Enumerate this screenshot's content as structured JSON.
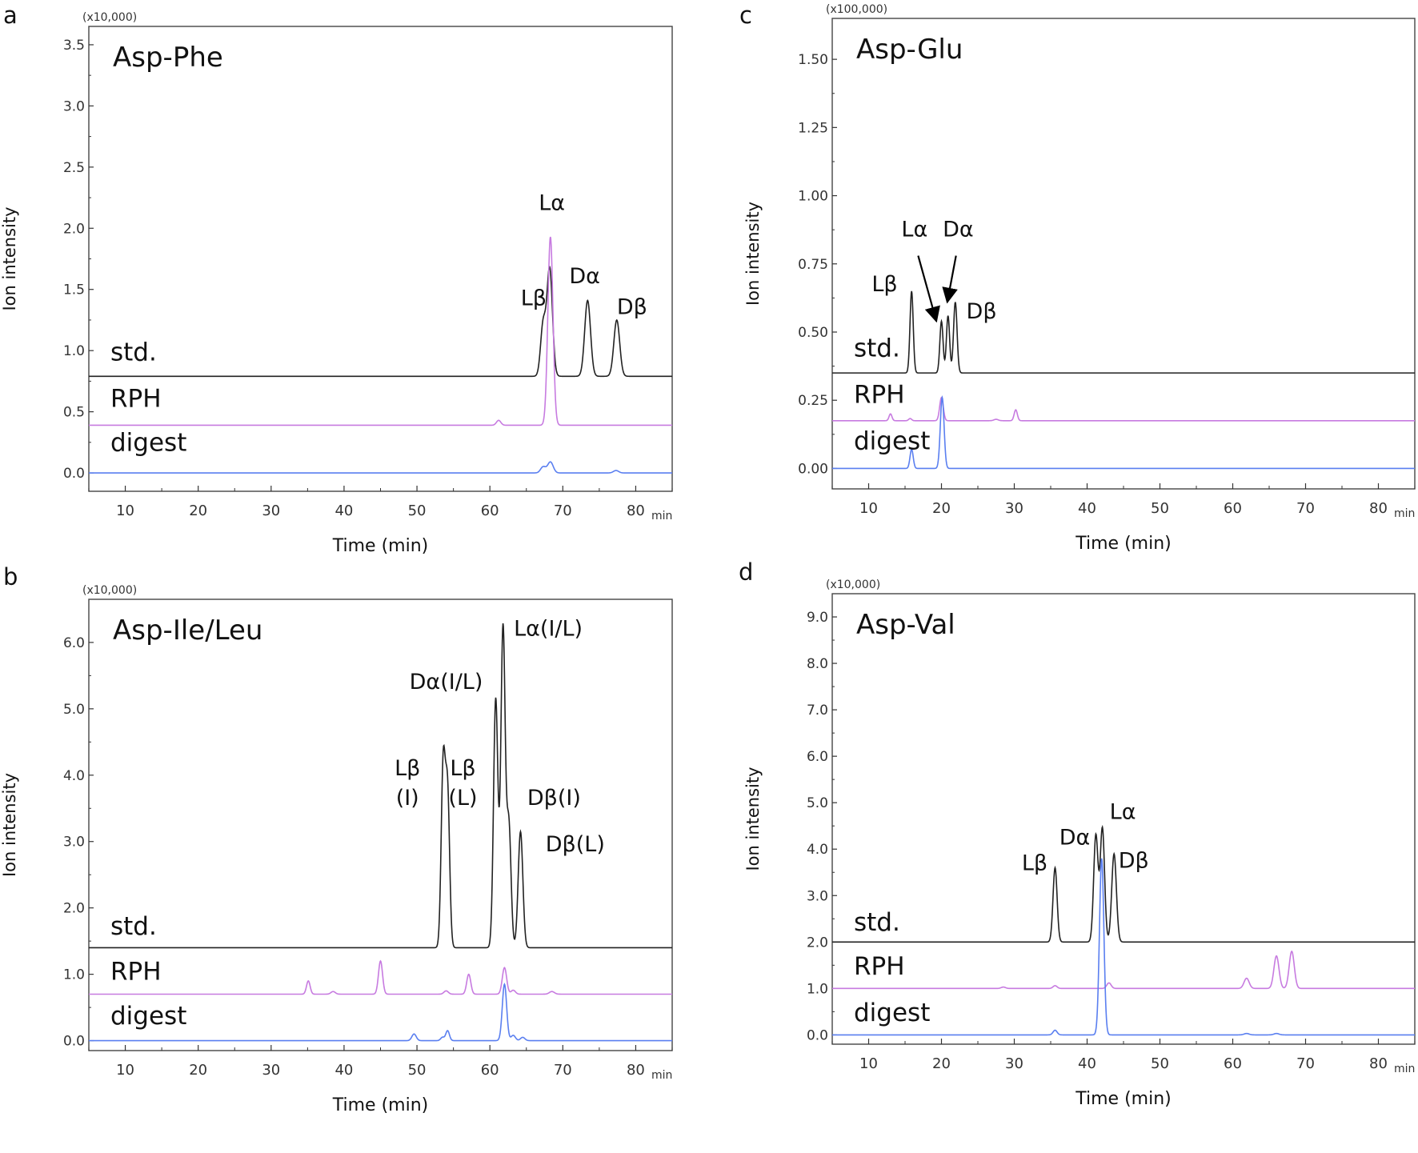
{
  "colors": {
    "std": "#222222",
    "rph": "#c77be0",
    "digest": "#5a7ff0",
    "axis": "#333333",
    "frame": "#444444"
  },
  "chart_data": [
    {
      "panel": "a",
      "type": "line",
      "title": "Asp-Phe",
      "xlabel": "Time (min)",
      "ylabel": "Ion intensity",
      "y_multiplier": "(x10,000)",
      "x_unit": "min",
      "xlim": [
        5,
        85
      ],
      "ylim": [
        -0.15,
        3.65
      ],
      "x_ticks": [
        10,
        20,
        30,
        40,
        50,
        60,
        70,
        80
      ],
      "y_ticks": [
        0.0,
        0.5,
        1.0,
        1.5,
        2.0,
        2.5,
        3.0,
        3.5
      ],
      "y_tick_labels": [
        "0.0",
        "0.5",
        "1.0",
        "1.5",
        "2.0",
        "2.5",
        "3.0",
        "3.5"
      ],
      "series": [
        {
          "name": "std.",
          "baseline": 0.79,
          "label_y": 0.92,
          "color_key": "std",
          "peaks": [
            [
              67.3,
              0.42,
              0.35
            ],
            [
              68.2,
              0.88,
              0.38
            ],
            [
              73.4,
              0.62,
              0.4
            ],
            [
              77.4,
              0.46,
              0.4
            ]
          ]
        },
        {
          "name": "RPH",
          "baseline": 0.39,
          "label_y": 0.54,
          "color_key": "rph",
          "peaks": [
            [
              61.2,
              0.04,
              0.3
            ],
            [
              68.3,
              1.54,
              0.35
            ]
          ]
        },
        {
          "name": "digest",
          "baseline": 0.0,
          "label_y": 0.18,
          "color_key": "digest",
          "peaks": [
            [
              67.3,
              0.05,
              0.35
            ],
            [
              68.3,
              0.09,
              0.38
            ],
            [
              77.3,
              0.02,
              0.35
            ]
          ]
        }
      ],
      "annotations": [
        {
          "text": "Lβ",
          "x": 66.0,
          "y": 1.37
        },
        {
          "text": "Lα",
          "x": 68.5,
          "y": 2.15
        },
        {
          "text": "Dα",
          "x": 73.0,
          "y": 1.55
        },
        {
          "text": "Dβ",
          "x": 79.5,
          "y": 1.3
        }
      ],
      "arrows": []
    },
    {
      "panel": "b",
      "type": "line",
      "title": "Asp-Ile/Leu",
      "xlabel": "Time (min)",
      "ylabel": "Ion intensity",
      "y_multiplier": "(x10,000)",
      "x_unit": "min",
      "xlim": [
        5,
        85
      ],
      "ylim": [
        -0.15,
        6.65
      ],
      "x_ticks": [
        10,
        20,
        30,
        40,
        50,
        60,
        70,
        80
      ],
      "y_ticks": [
        0.0,
        1.0,
        2.0,
        3.0,
        4.0,
        5.0,
        6.0
      ],
      "y_tick_labels": [
        "0.0",
        "1.0",
        "2.0",
        "3.0",
        "4.0",
        "5.0",
        "6.0"
      ],
      "series": [
        {
          "name": "std.",
          "baseline": 1.4,
          "label_y": 1.6,
          "color_key": "std",
          "peaks": [
            [
              53.6,
              2.75,
              0.28
            ],
            [
              54.2,
              2.3,
              0.28
            ],
            [
              60.8,
              3.75,
              0.3
            ],
            [
              61.8,
              4.82,
              0.3
            ],
            [
              62.6,
              1.85,
              0.3
            ],
            [
              64.2,
              1.75,
              0.32
            ]
          ]
        },
        {
          "name": "RPH",
          "baseline": 0.7,
          "label_y": 0.92,
          "color_key": "rph",
          "peaks": [
            [
              35.1,
              0.2,
              0.25
            ],
            [
              38.5,
              0.04,
              0.3
            ],
            [
              45.0,
              0.5,
              0.28
            ],
            [
              54.0,
              0.05,
              0.3
            ],
            [
              57.1,
              0.3,
              0.28
            ],
            [
              62.0,
              0.4,
              0.3
            ],
            [
              63.2,
              0.06,
              0.3
            ],
            [
              68.5,
              0.04,
              0.35
            ]
          ]
        },
        {
          "name": "digest",
          "baseline": 0.0,
          "label_y": 0.25,
          "color_key": "digest",
          "peaks": [
            [
              49.6,
              0.1,
              0.3
            ],
            [
              53.5,
              0.05,
              0.25
            ],
            [
              54.2,
              0.15,
              0.25
            ],
            [
              62.0,
              0.85,
              0.3
            ],
            [
              63.2,
              0.08,
              0.3
            ],
            [
              64.5,
              0.05,
              0.3
            ]
          ]
        }
      ],
      "annotations": [
        {
          "text": "Dα(I/L)",
          "x": 54.0,
          "y": 5.3
        },
        {
          "text": "Lα(I/L)",
          "x": 68.0,
          "y": 6.1
        },
        {
          "text": "Lβ",
          "x": 48.7,
          "y": 4.0
        },
        {
          "text": "(I)",
          "x": 48.7,
          "y": 3.55
        },
        {
          "text": "Lβ",
          "x": 56.3,
          "y": 4.0
        },
        {
          "text": "(L)",
          "x": 56.3,
          "y": 3.55
        },
        {
          "text": "Dβ(I)",
          "x": 68.8,
          "y": 3.55
        },
        {
          "text": "Dβ(L)",
          "x": 71.7,
          "y": 2.85
        }
      ],
      "arrows": []
    },
    {
      "panel": "c",
      "type": "line",
      "title": "Asp-Glu",
      "xlabel": "Time (min)",
      "ylabel": "Ion intensity",
      "y_multiplier": "(x100,000)",
      "x_unit": "min",
      "xlim": [
        5,
        85
      ],
      "ylim": [
        -0.075,
        1.65
      ],
      "x_ticks": [
        10,
        20,
        30,
        40,
        50,
        60,
        70,
        80
      ],
      "y_ticks": [
        0.0,
        0.25,
        0.5,
        0.75,
        1.0,
        1.25,
        1.5
      ],
      "y_tick_labels": [
        "0.00",
        "0.25",
        "0.50",
        "0.75",
        "1.00",
        "1.25",
        "1.50"
      ],
      "series": [
        {
          "name": "std.",
          "baseline": 0.35,
          "label_y": 0.41,
          "color_key": "std",
          "peaks": [
            [
              15.9,
              0.3,
              0.22
            ],
            [
              20.0,
              0.19,
              0.22
            ],
            [
              20.9,
              0.21,
              0.22
            ],
            [
              21.9,
              0.26,
              0.24
            ]
          ]
        },
        {
          "name": "RPH",
          "baseline": 0.175,
          "label_y": 0.24,
          "color_key": "rph",
          "peaks": [
            [
              13.0,
              0.025,
              0.2
            ],
            [
              15.7,
              0.008,
              0.2
            ],
            [
              20.0,
              0.085,
              0.25
            ],
            [
              27.5,
              0.005,
              0.3
            ],
            [
              30.2,
              0.04,
              0.22
            ]
          ]
        },
        {
          "name": "digest",
          "baseline": 0.0,
          "label_y": 0.07,
          "color_key": "digest",
          "peaks": [
            [
              15.9,
              0.07,
              0.22
            ],
            [
              20.1,
              0.26,
              0.26
            ]
          ]
        }
      ],
      "annotations": [
        {
          "text": "Lβ",
          "x": 12.2,
          "y": 0.65
        },
        {
          "text": "Lα",
          "x": 16.3,
          "y": 0.85
        },
        {
          "text": "Dα",
          "x": 22.3,
          "y": 0.85
        },
        {
          "text": "Dβ",
          "x": 25.5,
          "y": 0.55
        }
      ],
      "arrows": [
        {
          "from": [
            16.8,
            0.78
          ],
          "to": [
            19.3,
            0.54
          ]
        },
        {
          "from": [
            22.0,
            0.78
          ],
          "to": [
            20.8,
            0.61
          ]
        }
      ]
    },
    {
      "panel": "d",
      "type": "line",
      "title": "Asp-Val",
      "xlabel": "Time (min)",
      "ylabel": "Ion intensity",
      "y_multiplier": "(x10,000)",
      "x_unit": "min",
      "xlim": [
        5,
        85
      ],
      "ylim": [
        -0.2,
        9.5
      ],
      "x_ticks": [
        10,
        20,
        30,
        40,
        50,
        60,
        70,
        80
      ],
      "y_ticks": [
        0.0,
        1.0,
        2.0,
        3.0,
        4.0,
        5.0,
        6.0,
        7.0,
        8.0,
        9.0
      ],
      "y_tick_labels": [
        "0.0",
        "1.0",
        "2.0",
        "3.0",
        "4.0",
        "5.0",
        "6.0",
        "7.0",
        "8.0",
        "9.0"
      ],
      "series": [
        {
          "name": "std.",
          "baseline": 2.0,
          "label_y": 2.25,
          "color_key": "std",
          "peaks": [
            [
              35.6,
              1.6,
              0.28
            ],
            [
              41.2,
              2.3,
              0.3
            ],
            [
              42.1,
              2.45,
              0.3
            ],
            [
              43.7,
              1.9,
              0.32
            ]
          ]
        },
        {
          "name": "RPH",
          "baseline": 1.0,
          "label_y": 1.3,
          "color_key": "rph",
          "peaks": [
            [
              28.5,
              0.03,
              0.3
            ],
            [
              35.6,
              0.06,
              0.28
            ],
            [
              43.0,
              0.12,
              0.3
            ],
            [
              61.9,
              0.22,
              0.35
            ],
            [
              66.0,
              0.7,
              0.35
            ],
            [
              68.1,
              0.8,
              0.35
            ]
          ]
        },
        {
          "name": "digest",
          "baseline": 0.0,
          "label_y": 0.3,
          "color_key": "digest",
          "peaks": [
            [
              35.6,
              0.1,
              0.28
            ],
            [
              42.0,
              3.8,
              0.3
            ],
            [
              61.9,
              0.03,
              0.35
            ],
            [
              66.0,
              0.03,
              0.35
            ]
          ]
        }
      ],
      "annotations": [
        {
          "text": "Lβ",
          "x": 32.8,
          "y": 3.55
        },
        {
          "text": "Dα",
          "x": 38.3,
          "y": 4.1
        },
        {
          "text": "Lα",
          "x": 44.9,
          "y": 4.65
        },
        {
          "text": "Dβ",
          "x": 46.4,
          "y": 3.6
        }
      ],
      "arrows": []
    }
  ]
}
